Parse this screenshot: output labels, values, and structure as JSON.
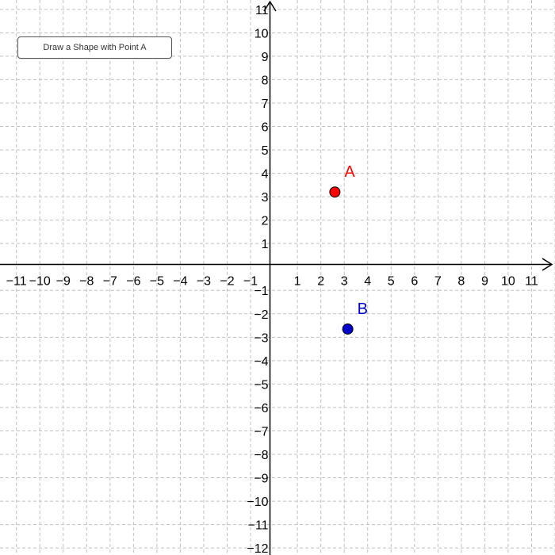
{
  "toolbar": {
    "draw_button_label": "Draw a Shape with Point A"
  },
  "graph": {
    "x_range": [
      -11.7,
      12.0
    ],
    "y_range": [
      -12.3,
      11.4
    ],
    "grid": "dashed",
    "x_tick_labels": [
      "−11",
      "−10",
      "−9",
      "−8",
      "−7",
      "−6",
      "−5",
      "−4",
      "−3",
      "−2",
      "−1",
      "1",
      "2",
      "3",
      "4",
      "5",
      "6",
      "7",
      "8",
      "9",
      "10",
      "11"
    ],
    "y_tick_labels": [
      "11",
      "10",
      "9",
      "8",
      "7",
      "6",
      "5",
      "4",
      "3",
      "2",
      "1",
      "−1",
      "−2",
      "−3",
      "−4",
      "−5",
      "−6",
      "−7",
      "−8",
      "−9",
      "−10",
      "−11",
      "−12"
    ],
    "points": [
      {
        "name": "A",
        "x": 2.6,
        "y": 3.2,
        "color": "#ff0000"
      },
      {
        "name": "B",
        "x": 3.15,
        "y": -2.65,
        "color": "#0000cc"
      }
    ]
  }
}
